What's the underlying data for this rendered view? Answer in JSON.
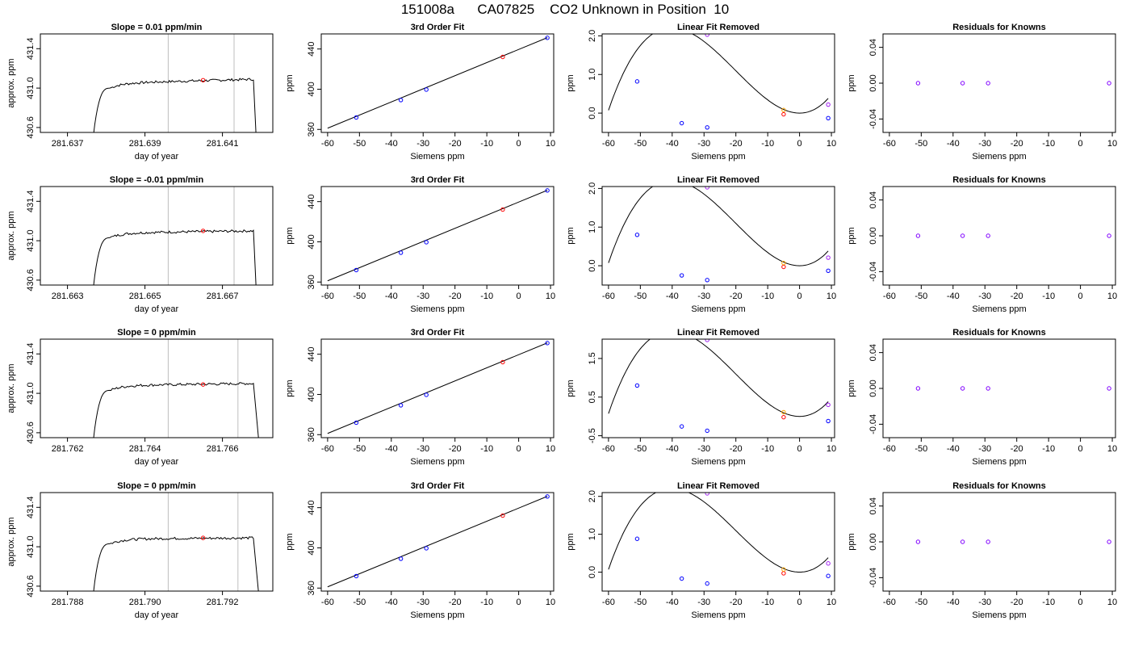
{
  "page": {
    "title": "151008a      CA07825    CO2 Unknown in Position  10"
  },
  "colors": {
    "known": "#0000ff",
    "unknown": "#ff0000",
    "orange": "#ffa500",
    "purple": "#a020f0",
    "residual": "#8000ff",
    "curve": "#000000",
    "vline": "#bebebe"
  },
  "chart_data": [
    {
      "type": "line",
      "panel": "timeseries",
      "row": 0,
      "title": "Slope =  0.01  ppm/min",
      "xlabel": "day of year",
      "ylabel": "approx. ppm",
      "xlim": [
        281.6363,
        281.6423
      ],
      "ylim": [
        430.55,
        431.55
      ],
      "xticks": [
        281.637,
        281.639,
        281.641
      ],
      "xticklabels": [
        "281.637",
        "281.639",
        "281.641"
      ],
      "yticks": [
        430.6,
        431.0,
        431.4
      ],
      "yticklabels": [
        "430.6",
        "431.0",
        "431.4"
      ],
      "vlines": [
        281.6396,
        281.6413
      ],
      "t_start": 281.6376,
      "t_rise_end": 281.6381,
      "t_end": 281.6418,
      "t_drop": 281.6419,
      "plateau": 431.05,
      "plateau_end": 431.09,
      "point": {
        "x": 281.6405,
        "y": 431.08
      }
    },
    {
      "type": "line",
      "panel": "fit",
      "row": 0,
      "title": "3rd Order Fit",
      "xlabel": "Siemens ppm",
      "ylabel": "ppm",
      "xlim": [
        -62,
        11
      ],
      "ylim": [
        357,
        455
      ],
      "xticks": [
        -60,
        -50,
        -40,
        -30,
        -20,
        -10,
        0,
        10
      ],
      "yticks": [
        360,
        400,
        440
      ],
      "line": [
        [
          -60,
          361.2
        ],
        [
          9,
          451.3
        ]
      ],
      "knowns": [
        [
          -51,
          371.9
        ],
        [
          -37,
          389.2
        ],
        [
          -29,
          399.6
        ],
        [
          9,
          451.1
        ]
      ],
      "unknown": [
        -5,
        432.1
      ]
    },
    {
      "type": "scatter",
      "panel": "linear_removed",
      "row": 0,
      "title": "Linear Fit Removed",
      "xlabel": "Siemens ppm",
      "ylabel": "ppm",
      "xlim": [
        -62,
        11
      ],
      "ylim": [
        -0.5,
        2.05
      ],
      "xticks": [
        -60,
        -50,
        -40,
        -30,
        -20,
        -10,
        0,
        10
      ],
      "yticks": [
        0.0,
        1.0,
        2.0
      ],
      "yticklabels": [
        "0.0",
        "1.0",
        "2.0"
      ],
      "curve_a": 0.0041,
      "curve_b": 6.8e-05,
      "curve_c": 0.0,
      "knowns": [
        [
          -51,
          0.82
        ],
        [
          -37,
          -0.26
        ],
        [
          -29,
          -0.37
        ],
        [
          9,
          -0.13
        ]
      ],
      "unknown": [
        -5,
        -0.03
      ],
      "orange": [
        -5,
        0.08
      ],
      "purple": [
        [
          -29,
          2.03
        ],
        [
          9,
          0.22
        ]
      ]
    },
    {
      "type": "scatter",
      "panel": "residuals",
      "row": 0,
      "title": "Residuals for Knowns",
      "xlabel": "Siemens ppm",
      "ylabel": "ppm",
      "xlim": [
        -62,
        11
      ],
      "ylim": [
        -0.055,
        0.055
      ],
      "xticks": [
        -60,
        -50,
        -40,
        -30,
        -20,
        -10,
        0,
        10
      ],
      "yticks": [
        -0.04,
        0.0,
        0.04
      ],
      "yticklabels": [
        "-0.04",
        "0.00",
        "0.04"
      ],
      "points": [
        [
          -51,
          0.0
        ],
        [
          -37,
          0.0
        ],
        [
          -29,
          0.0
        ],
        [
          9,
          0.0
        ]
      ]
    },
    {
      "type": "line",
      "panel": "timeseries",
      "row": 1,
      "title": "Slope =  -0.01  ppm/min",
      "xlabel": "day of year",
      "ylabel": "approx. ppm",
      "xlim": [
        281.6623,
        281.6683
      ],
      "ylim": [
        430.55,
        431.55
      ],
      "xticks": [
        281.663,
        281.665,
        281.667
      ],
      "xticklabels": [
        "281.663",
        "281.665",
        "281.667"
      ],
      "yticks": [
        430.6,
        431.0,
        431.4
      ],
      "yticklabels": [
        "430.6",
        "431.0",
        "431.4"
      ],
      "vlines": [
        281.6656,
        281.6673
      ],
      "t_start": 281.6636,
      "t_rise_end": 281.6641,
      "t_end": 281.6678,
      "t_drop": 281.6679,
      "plateau": 431.08,
      "plateau_end": 431.1,
      "point": {
        "x": 281.6665,
        "y": 431.1
      }
    },
    {
      "type": "line",
      "panel": "fit",
      "row": 1,
      "title": "3rd Order Fit",
      "xlabel": "Siemens ppm",
      "ylabel": "ppm",
      "xlim": [
        -62,
        11
      ],
      "ylim": [
        357,
        455
      ],
      "xticks": [
        -60,
        -50,
        -40,
        -30,
        -20,
        -10,
        0,
        10
      ],
      "yticks": [
        360,
        400,
        440
      ],
      "line": [
        [
          -60,
          361.2
        ],
        [
          9,
          451.3
        ]
      ],
      "knowns": [
        [
          -51,
          371.9
        ],
        [
          -37,
          389.2
        ],
        [
          -29,
          399.6
        ],
        [
          9,
          451.1
        ]
      ],
      "unknown": [
        -5,
        432.1
      ]
    },
    {
      "type": "scatter",
      "panel": "linear_removed",
      "row": 1,
      "title": "Linear Fit Removed",
      "xlabel": "Siemens ppm",
      "ylabel": "ppm",
      "xlim": [
        -62,
        11
      ],
      "ylim": [
        -0.5,
        2.05
      ],
      "xticks": [
        -60,
        -50,
        -40,
        -30,
        -20,
        -10,
        0,
        10
      ],
      "yticks": [
        0.0,
        1.0,
        2.0
      ],
      "yticklabels": [
        "0.0",
        "1.0",
        "2.0"
      ],
      "curve_a": 0.0041,
      "curve_b": 6.8e-05,
      "curve_c": 0.0,
      "knowns": [
        [
          -51,
          0.8
        ],
        [
          -37,
          -0.25
        ],
        [
          -29,
          -0.37
        ],
        [
          9,
          -0.13
        ]
      ],
      "unknown": [
        -5,
        -0.03
      ],
      "orange": [
        -5,
        0.07
      ],
      "purple": [
        [
          -29,
          2.03
        ],
        [
          9,
          0.21
        ]
      ]
    },
    {
      "type": "scatter",
      "panel": "residuals",
      "row": 1,
      "title": "Residuals for Knowns",
      "xlabel": "Siemens ppm",
      "ylabel": "ppm",
      "xlim": [
        -62,
        11
      ],
      "ylim": [
        -0.055,
        0.055
      ],
      "xticks": [
        -60,
        -50,
        -40,
        -30,
        -20,
        -10,
        0,
        10
      ],
      "yticks": [
        -0.04,
        0.0,
        0.04
      ],
      "yticklabels": [
        "-0.04",
        "0.00",
        "0.04"
      ],
      "points": [
        [
          -51,
          0.0
        ],
        [
          -37,
          0.0
        ],
        [
          -29,
          0.0
        ],
        [
          9,
          0.0
        ]
      ]
    },
    {
      "type": "line",
      "panel": "timeseries",
      "row": 2,
      "title": "Slope =  0  ppm/min",
      "xlabel": "day of year",
      "ylabel": "approx. ppm",
      "xlim": [
        281.7613,
        281.7673
      ],
      "ylim": [
        430.55,
        431.55
      ],
      "xticks": [
        281.762,
        281.764,
        281.766
      ],
      "xticklabels": [
        "281.762",
        "281.764",
        "281.766"
      ],
      "yticks": [
        430.6,
        431.0,
        431.4
      ],
      "yticklabels": [
        "430.6",
        "431.0",
        "431.4"
      ],
      "vlines": [
        281.7646,
        281.7664
      ],
      "t_start": 281.7626,
      "t_rise_end": 281.7631,
      "t_end": 281.7668,
      "t_drop": 281.767,
      "plateau": 431.08,
      "plateau_end": 431.1,
      "point": {
        "x": 281.7655,
        "y": 431.09
      }
    },
    {
      "type": "line",
      "panel": "fit",
      "row": 2,
      "title": "3rd Order Fit",
      "xlabel": "Siemens ppm",
      "ylabel": "ppm",
      "xlim": [
        -62,
        11
      ],
      "ylim": [
        357,
        455
      ],
      "xticks": [
        -60,
        -50,
        -40,
        -30,
        -20,
        -10,
        0,
        10
      ],
      "yticks": [
        360,
        400,
        440
      ],
      "line": [
        [
          -60,
          361.2
        ],
        [
          9,
          451.3
        ]
      ],
      "knowns": [
        [
          -51,
          371.9
        ],
        [
          -37,
          389.2
        ],
        [
          -29,
          399.6
        ],
        [
          9,
          451.1
        ]
      ],
      "unknown": [
        -5,
        432.1
      ]
    },
    {
      "type": "scatter",
      "panel": "linear_removed",
      "row": 2,
      "title": "Linear Fit Removed",
      "xlabel": "Siemens ppm",
      "ylabel": "ppm",
      "xlim": [
        -62,
        11
      ],
      "ylim": [
        -0.55,
        2.0
      ],
      "xticks": [
        -60,
        -50,
        -40,
        -30,
        -20,
        -10,
        0,
        10
      ],
      "yticks": [
        -0.5,
        0.5,
        1.5
      ],
      "yticklabels": [
        "-0.5",
        "0.5",
        "1.5"
      ],
      "curve_a": 0.0041,
      "curve_b": 6.8e-05,
      "curve_c": 0.0,
      "knowns": [
        [
          -51,
          0.8
        ],
        [
          -37,
          -0.26
        ],
        [
          -29,
          -0.37
        ],
        [
          9,
          -0.12
        ]
      ],
      "unknown": [
        -5,
        -0.02
      ],
      "orange": [
        -5,
        0.11
      ],
      "purple": [
        [
          -29,
          1.98
        ],
        [
          9,
          0.3
        ]
      ]
    },
    {
      "type": "scatter",
      "panel": "residuals",
      "row": 2,
      "title": "Residuals for Knowns",
      "xlabel": "Siemens ppm",
      "ylabel": "ppm",
      "xlim": [
        -62,
        11
      ],
      "ylim": [
        -0.055,
        0.055
      ],
      "xticks": [
        -60,
        -50,
        -40,
        -30,
        -20,
        -10,
        0,
        10
      ],
      "yticks": [
        -0.04,
        0.0,
        0.04
      ],
      "yticklabels": [
        "-0.04",
        "0.00",
        "0.04"
      ],
      "points": [
        [
          -51,
          0.0
        ],
        [
          -37,
          0.0
        ],
        [
          -29,
          0.0
        ],
        [
          9,
          0.0
        ]
      ]
    },
    {
      "type": "line",
      "panel": "timeseries",
      "row": 3,
      "title": "Slope =  0  ppm/min",
      "xlabel": "day of year",
      "ylabel": "approx. ppm",
      "xlim": [
        281.7873,
        281.7933
      ],
      "ylim": [
        430.55,
        431.55
      ],
      "xticks": [
        281.788,
        281.79,
        281.792
      ],
      "xticklabels": [
        "281.788",
        "281.790",
        "281.792"
      ],
      "yticks": [
        430.6,
        431.0,
        431.4
      ],
      "yticklabels": [
        "430.6",
        "431.0",
        "431.4"
      ],
      "vlines": [
        281.7906,
        281.7924
      ],
      "t_start": 281.7886,
      "t_rise_end": 281.7891,
      "t_end": 281.7928,
      "t_drop": 281.793,
      "plateau": 431.08,
      "plateau_end": 431.09,
      "point": {
        "x": 281.7915,
        "y": 431.09
      }
    },
    {
      "type": "line",
      "panel": "fit",
      "row": 3,
      "title": "3rd Order Fit",
      "xlabel": "Siemens ppm",
      "ylabel": "ppm",
      "xlim": [
        -62,
        11
      ],
      "ylim": [
        357,
        455
      ],
      "xticks": [
        -60,
        -50,
        -40,
        -30,
        -20,
        -10,
        0,
        10
      ],
      "yticks": [
        360,
        400,
        440
      ],
      "line": [
        [
          -60,
          361.2
        ],
        [
          9,
          451.3
        ]
      ],
      "knowns": [
        [
          -51,
          371.9
        ],
        [
          -37,
          389.2
        ],
        [
          -29,
          399.6
        ],
        [
          9,
          451.1
        ]
      ],
      "unknown": [
        -5,
        432.1
      ]
    },
    {
      "type": "scatter",
      "panel": "linear_removed",
      "row": 3,
      "title": "Linear Fit Removed",
      "xlabel": "Siemens ppm",
      "ylabel": "ppm",
      "xlim": [
        -62,
        11
      ],
      "ylim": [
        -0.5,
        2.1
      ],
      "xticks": [
        -60,
        -50,
        -40,
        -30,
        -20,
        -10,
        0,
        10
      ],
      "yticks": [
        0.0,
        1.0,
        2.0
      ],
      "yticklabels": [
        "0.0",
        "1.0",
        "2.0"
      ],
      "curve_a": 0.0041,
      "curve_b": 6.8e-05,
      "curve_c": 0.0,
      "knowns": [
        [
          -51,
          0.88
        ],
        [
          -37,
          -0.17
        ],
        [
          -29,
          -0.3
        ],
        [
          9,
          -0.1
        ]
      ],
      "unknown": [
        -5,
        -0.03
      ],
      "orange": [
        -5,
        0.07
      ],
      "purple": [
        [
          -29,
          2.08
        ],
        [
          9,
          0.23
        ]
      ]
    },
    {
      "type": "scatter",
      "panel": "residuals",
      "row": 3,
      "title": "Residuals for Knowns",
      "xlabel": "Siemens ppm",
      "ylabel": "ppm",
      "xlim": [
        -62,
        11
      ],
      "ylim": [
        -0.055,
        0.055
      ],
      "xticks": [
        -60,
        -50,
        -40,
        -30,
        -20,
        -10,
        0,
        10
      ],
      "yticks": [
        -0.04,
        0.0,
        0.04
      ],
      "yticklabels": [
        "-0.04",
        "0.00",
        "0.04"
      ],
      "points": [
        [
          -51,
          0.0
        ],
        [
          -37,
          0.0
        ],
        [
          -29,
          0.0
        ],
        [
          9,
          0.0
        ]
      ]
    }
  ]
}
